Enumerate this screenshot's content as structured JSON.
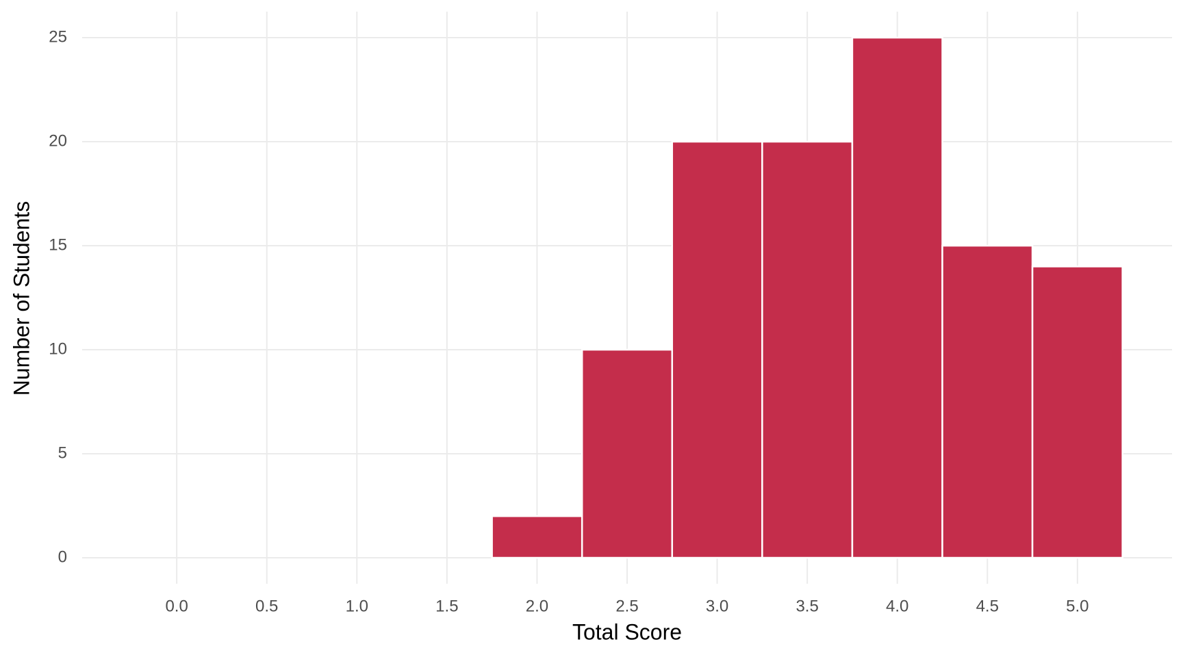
{
  "chart_data": {
    "type": "histogram",
    "x_label": "Total Score",
    "y_label": "Number of Students",
    "bins": [
      -0.25,
      0.25,
      0.75,
      1.25,
      1.75,
      2.25,
      2.75,
      3.25,
      3.75,
      4.25,
      4.75,
      5.25
    ],
    "values": [
      0,
      0,
      0,
      0,
      2,
      10,
      20,
      20,
      25,
      15,
      14
    ],
    "color": "#c42d4b",
    "xlim": [
      -0.525,
      5.525
    ],
    "xticks": [
      {
        "value": 0,
        "label": "0.0"
      },
      0.5,
      {
        "value": 1,
        "label": "1.0"
      },
      1.5,
      {
        "value": 2,
        "label": "2.0"
      },
      2.5,
      {
        "value": 3,
        "label": "3.0"
      },
      3.5,
      {
        "value": 4,
        "label": "4.0"
      },
      4.5,
      {
        "value": 5,
        "label": "5.0"
      }
    ],
    "ylim": [
      -1.25,
      26.25
    ],
    "yticks": [
      0,
      5,
      10,
      15,
      20,
      25
    ],
    "grid": true
  }
}
